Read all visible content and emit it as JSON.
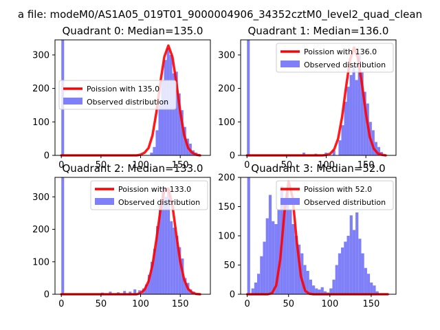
{
  "figure": {
    "suptitle": "a file: modeM0/AS1A05_019T01_9000004906_34352cztM0_level2_quad_clean"
  },
  "colors": {
    "poisson": "#ff0000",
    "observed": "#7f7ff7",
    "axis": "#000000",
    "background": "#ffffff"
  },
  "chart_data": [
    {
      "type": "bar",
      "title": "Quadrant 0: Median=135.0",
      "xlim": [
        -8,
        188
      ],
      "ylim": [
        0,
        345
      ],
      "xticks": [
        0,
        50,
        100,
        150
      ],
      "yticks": [
        0,
        100,
        200,
        300
      ],
      "legend_position": "center-left",
      "poisson_mean": 135,
      "poisson_peak": 328,
      "series": [
        {
          "name": "Poission with 135.0",
          "kind": "line",
          "x": [
            0,
            5,
            10,
            15,
            20,
            25,
            30,
            35,
            40,
            45,
            50,
            55,
            60,
            65,
            70,
            75,
            80,
            85,
            90,
            95,
            100,
            105,
            110,
            115,
            120,
            125,
            130,
            135,
            140,
            145,
            150,
            155,
            160,
            165,
            170,
            175
          ],
          "values": [
            0,
            0,
            0,
            0,
            0,
            0,
            0,
            0,
            0,
            0,
            0,
            0,
            0,
            0,
            0,
            0,
            0,
            0,
            0,
            0,
            2,
            8,
            22,
            60,
            130,
            220,
            295,
            328,
            295,
            220,
            130,
            60,
            22,
            8,
            2,
            0
          ]
        },
        {
          "name": "Observed distribution",
          "kind": "hist",
          "bin_width": 3.5,
          "x": [
            0,
            112.0,
            115.5,
            119.0,
            122.5,
            126.0,
            129.5,
            133.0,
            136.5,
            140.0,
            143.5,
            147.0,
            150.5,
            154.0,
            157.5,
            161.0,
            164.5,
            168.0,
            171.5
          ],
          "values": [
            345,
            8,
            25,
            75,
            150,
            225,
            285,
            320,
            300,
            245,
            250,
            185,
            135,
            85,
            50,
            35,
            15,
            8,
            4
          ]
        }
      ]
    },
    {
      "type": "bar",
      "title": "Quadrant 1: Median=136.0",
      "xlim": [
        -8,
        188
      ],
      "ylim": [
        0,
        345
      ],
      "xticks": [
        0,
        50,
        100,
        150
      ],
      "yticks": [
        0,
        100,
        200,
        300
      ],
      "legend_position": "top-right",
      "poisson_mean": 136,
      "poisson_peak": 322,
      "series": [
        {
          "name": "Poission with 136.0",
          "kind": "line",
          "x": [
            0,
            5,
            10,
            15,
            20,
            25,
            30,
            35,
            40,
            45,
            50,
            55,
            60,
            65,
            70,
            75,
            80,
            85,
            90,
            95,
            100,
            105,
            110,
            115,
            120,
            125,
            130,
            135,
            140,
            145,
            150,
            155,
            160,
            165,
            170,
            175
          ],
          "values": [
            0,
            0,
            0,
            0,
            0,
            0,
            0,
            0,
            0,
            0,
            0,
            0,
            0,
            0,
            0,
            0,
            0,
            0,
            0,
            0,
            1,
            5,
            18,
            50,
            115,
            205,
            285,
            322,
            290,
            215,
            125,
            55,
            20,
            6,
            2,
            0
          ]
        },
        {
          "name": "Observed distribution",
          "kind": "hist",
          "bin_width": 3.5,
          "x": [
            0,
            70.0,
            85.0,
            98.0,
            108.0,
            115.5,
            119.0,
            122.5,
            126.0,
            129.5,
            133.0,
            136.5,
            140.0,
            143.5,
            147.0,
            150.5,
            154.0,
            157.5,
            161.0,
            164.5,
            168.0
          ],
          "values": [
            345,
            8,
            5,
            8,
            15,
            45,
            90,
            160,
            205,
            240,
            270,
            225,
            300,
            250,
            190,
            155,
            100,
            75,
            40,
            25,
            10
          ]
        }
      ]
    },
    {
      "type": "bar",
      "title": "Quadrant 2: Median=133.0",
      "xlim": [
        -8,
        188
      ],
      "ylim": [
        0,
        360
      ],
      "xticks": [
        0,
        50,
        100,
        150
      ],
      "yticks": [
        0,
        100,
        200,
        300
      ],
      "legend_position": "top-right",
      "poisson_mean": 133,
      "poisson_peak": 330,
      "series": [
        {
          "name": "Poission with 133.0",
          "kind": "line",
          "x": [
            0,
            5,
            10,
            15,
            20,
            25,
            30,
            35,
            40,
            45,
            50,
            55,
            60,
            65,
            70,
            75,
            80,
            85,
            90,
            95,
            100,
            105,
            110,
            115,
            120,
            125,
            130,
            135,
            140,
            145,
            150,
            155,
            160,
            165,
            170,
            175
          ],
          "values": [
            0,
            0,
            0,
            0,
            0,
            0,
            0,
            0,
            0,
            0,
            0,
            0,
            0,
            0,
            0,
            0,
            0,
            0,
            0,
            0,
            4,
            14,
            40,
            90,
            170,
            260,
            320,
            325,
            275,
            185,
            100,
            45,
            16,
            5,
            1,
            0
          ]
        },
        {
          "name": "Observed distribution",
          "kind": "hist",
          "bin_width": 3.5,
          "x": [
            0,
            50.0,
            60.0,
            70.0,
            78.0,
            85.0,
            91.0,
            97.0,
            102.0,
            105.5,
            109.0,
            112.5,
            116.0,
            119.5,
            123.0,
            126.5,
            130.0,
            133.5,
            137.0,
            140.5,
            144.0,
            147.5,
            151.0,
            154.5,
            158.0,
            161.5,
            165.0
          ],
          "values": [
            360,
            5,
            8,
            6,
            10,
            8,
            15,
            12,
            18,
            30,
            60,
            100,
            140,
            210,
            275,
            330,
            300,
            320,
            225,
            205,
            180,
            145,
            110,
            50,
            35,
            15,
            8
          ]
        }
      ]
    },
    {
      "type": "bar",
      "title": "Quadrant 3: Median=52.0",
      "xlim": [
        -8,
        180
      ],
      "ylim": [
        0,
        200
      ],
      "xticks": [
        0,
        50,
        100,
        150
      ],
      "yticks": [
        0,
        50,
        100,
        150,
        200
      ],
      "legend_position": "top-right",
      "poisson_mean": 52,
      "poisson_peak": 193,
      "series": [
        {
          "name": "Poission with 52.0",
          "kind": "line",
          "x": [
            0,
            5,
            10,
            15,
            20,
            25,
            30,
            35,
            40,
            45,
            50,
            55,
            60,
            65,
            70,
            75,
            80,
            85,
            90,
            95,
            100,
            105,
            110,
            115,
            120,
            125,
            130,
            135,
            140,
            145,
            150,
            155,
            160,
            165,
            170
          ],
          "values": [
            0,
            0,
            0,
            0,
            0,
            0,
            2,
            15,
            60,
            140,
            193,
            165,
            90,
            30,
            6,
            1,
            0,
            0,
            0,
            0,
            0,
            0,
            0,
            0,
            0,
            0,
            0,
            0,
            0,
            0,
            0,
            0,
            0,
            0,
            0
          ]
        },
        {
          "name": "Observed distribution",
          "kind": "hist",
          "bin_width": 3.5,
          "x": [
            0,
            5.0,
            8.5,
            12.0,
            15.5,
            19.0,
            22.5,
            26.0,
            29.5,
            33.0,
            36.5,
            40.0,
            43.5,
            47.0,
            50.5,
            54.0,
            57.5,
            61.0,
            64.5,
            68.0,
            71.5,
            75.0,
            78.5,
            82.0,
            85.5,
            89.0,
            92.5,
            96.0,
            99.5,
            103.0,
            106.5,
            110.0,
            113.5,
            117.0,
            120.5,
            124.0,
            127.5,
            131.0,
            134.5,
            138.0,
            141.5,
            145.0,
            148.5,
            152.0,
            155.5
          ],
          "values": [
            200,
            10,
            20,
            35,
            65,
            90,
            130,
            170,
            125,
            120,
            145,
            185,
            160,
            175,
            145,
            120,
            100,
            85,
            70,
            50,
            40,
            25,
            15,
            10,
            8,
            12,
            5,
            3,
            10,
            25,
            50,
            70,
            80,
            90,
            100,
            135,
            110,
            140,
            95,
            70,
            45,
            35,
            20,
            15,
            5
          ]
        }
      ]
    }
  ]
}
